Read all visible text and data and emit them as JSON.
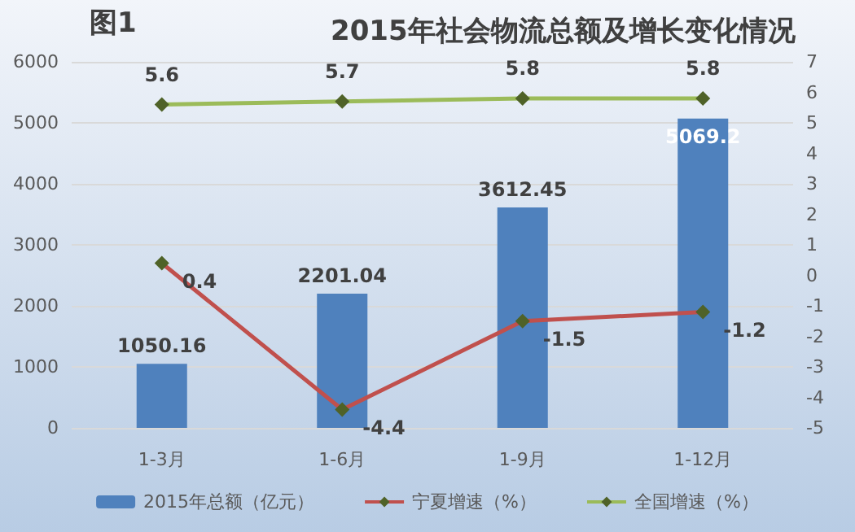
{
  "chart_data": {
    "type": "bar",
    "title": "2015年社会物流总额及增长变化情况",
    "annotations": [
      "图1"
    ],
    "categories": [
      "1-3月",
      "1-6月",
      "1-9月",
      "1-12月"
    ],
    "series": [
      {
        "name": "2015年总额（亿元）",
        "color": "#4f81bd",
        "values": [
          1050.16,
          2201.04,
          3612.45,
          5069.2
        ]
      },
      {
        "name": "宁夏增速（%）",
        "type": "line",
        "axis": "y2",
        "color": "#c0504d",
        "values": [
          0.4,
          -4.4,
          -1.5,
          -1.2
        ]
      },
      {
        "name": "全国增速（%）",
        "type": "line",
        "axis": "y2",
        "color": "#9bbb59",
        "values": [
          5.6,
          5.7,
          5.8,
          5.8
        ]
      }
    ],
    "ylim": [
      0,
      6000
    ],
    "yticks": [
      0,
      1000,
      2000,
      3000,
      4000,
      5000,
      6000
    ],
    "y2lim": [
      -5,
      7
    ],
    "y2ticks": [
      -5,
      -4,
      -3,
      -2,
      -1,
      0,
      1,
      2,
      3,
      4,
      5,
      6,
      7
    ],
    "grid": "y",
    "legend": "bottom",
    "marker": "diamond",
    "data_labels": true
  }
}
